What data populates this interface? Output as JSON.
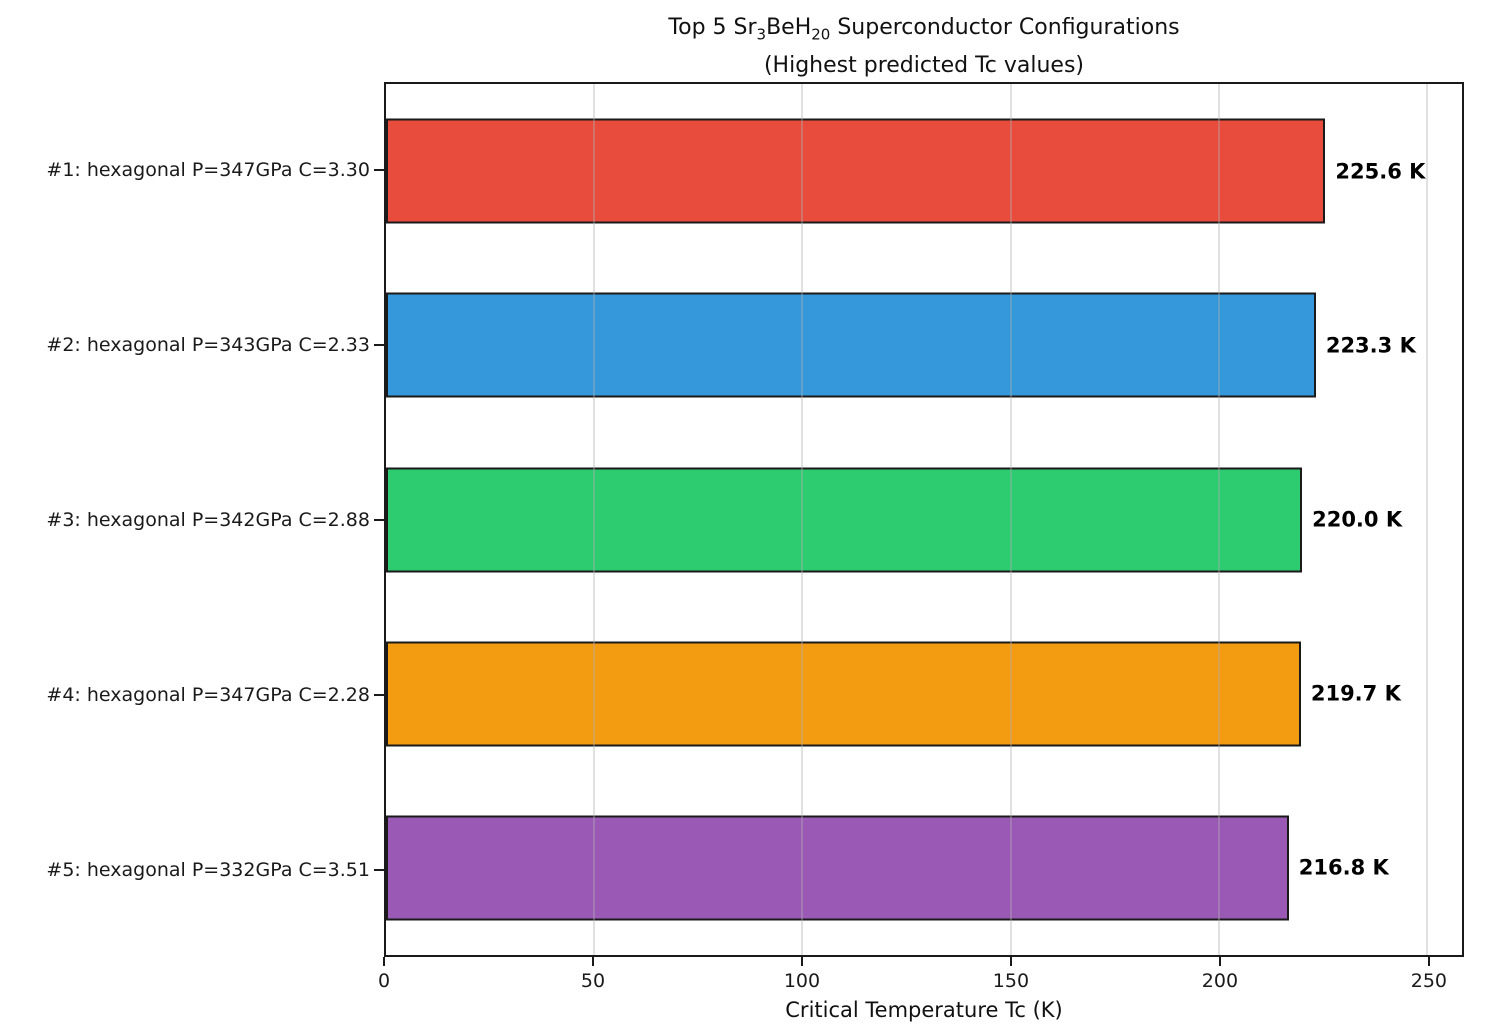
{
  "title": {
    "line1_part1": "Top 5 Sr",
    "line1_sub1": "3",
    "line1_part2": "BeH",
    "line1_sub2": "20",
    "line1_part3": " Superconductor Configurations",
    "line2": "(Highest predicted Tc values)"
  },
  "chart_data": {
    "type": "bar",
    "orientation": "horizontal",
    "categories": [
      "#1: hexagonal P=347GPa C=3.30",
      "#2: hexagonal P=343GPa C=2.33",
      "#3: hexagonal P=342GPa C=2.88",
      "#4: hexagonal P=347GPa C=2.28",
      "#5: hexagonal P=332GPa C=3.51"
    ],
    "values": [
      225.6,
      223.3,
      220.0,
      219.7,
      216.8
    ],
    "value_labels": [
      "225.6 K",
      "223.3 K",
      "220.0 K",
      "219.7 K",
      "216.8 K"
    ],
    "bar_colors": [
      "#e74c3c",
      "#3498db",
      "#2ecc71",
      "#f39c12",
      "#9b59b6"
    ],
    "bar_edge_color": "#1a1a1a",
    "xlabel": "Critical Temperature Tc (K)",
    "x_ticks": [
      0,
      50,
      100,
      150,
      200,
      250
    ],
    "xlim": [
      0,
      258.4
    ],
    "grid": true,
    "legend": "none"
  }
}
